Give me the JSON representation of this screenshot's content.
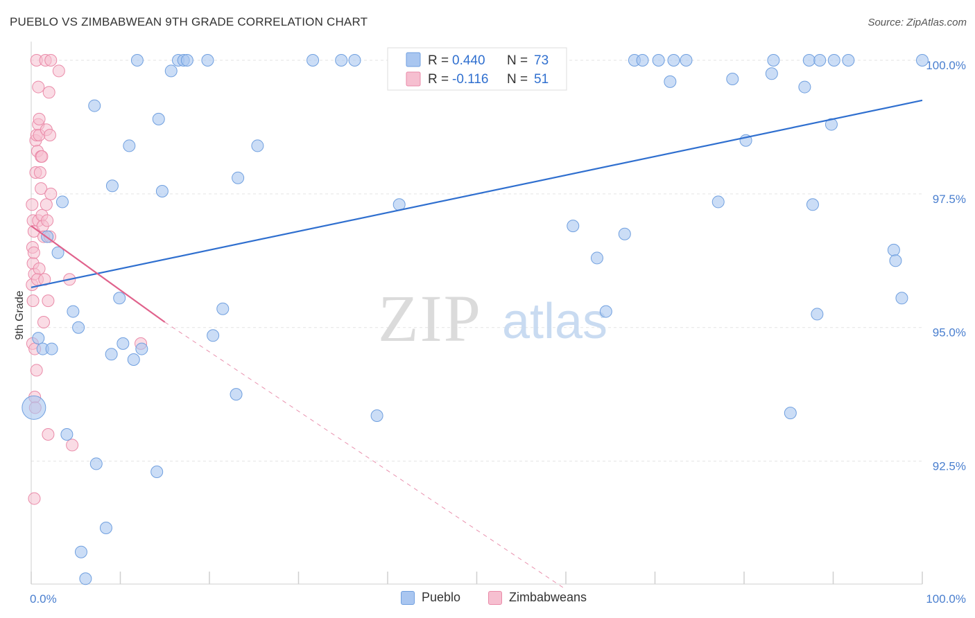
{
  "title": "PUEBLO VS ZIMBABWEAN 9TH GRADE CORRELATION CHART",
  "source": "Source: ZipAtlas.com",
  "watermark": {
    "zip": "ZIP",
    "atlas": "atlas"
  },
  "colors": {
    "blue_fill": "#a9c6f0",
    "blue_stroke": "#6f9fdf",
    "blue_line": "#2f6fcf",
    "pink_fill": "#f6bfd0",
    "pink_stroke": "#ea8aa8",
    "pink_line": "#e0628c",
    "tick_text": "#4a7fcf",
    "grid": "#e3e3e3"
  },
  "legend": {
    "rows": [
      {
        "r_label": "R =",
        "r_value": "0.440",
        "n_label": "N =",
        "n_value": "73"
      },
      {
        "r_label": "R =",
        "r_value": "-0.116",
        "n_label": "N =",
        "n_value": "51"
      }
    ]
  },
  "bottom_legend": [
    "Pueblo",
    "Zimbabweans"
  ],
  "chart_data": {
    "type": "scatter",
    "title": "PUEBLO VS ZIMBABWEAN 9TH GRADE CORRELATION CHART",
    "xlabel": "",
    "ylabel": "9th Grade",
    "xlim": [
      0,
      100
    ],
    "ylim": [
      90.2,
      100.35
    ],
    "x_tick_labels": [
      "0.0%",
      "100.0%"
    ],
    "y_ticks": [
      92.5,
      95.0,
      97.5,
      100.0
    ],
    "y_tick_labels": [
      "92.5%",
      "95.0%",
      "97.5%",
      "100.0%"
    ],
    "grid": true,
    "legend_position": "top-center",
    "series": [
      {
        "name": "Pueblo",
        "trend": {
          "x": [
            0,
            100
          ],
          "y": [
            95.75,
            99.25
          ]
        },
        "points": [
          {
            "x": 0.3,
            "y": 93.5,
            "big": true
          },
          {
            "x": 0.8,
            "y": 94.8
          },
          {
            "x": 1.3,
            "y": 94.6
          },
          {
            "x": 2.3,
            "y": 94.6
          },
          {
            "x": 1.8,
            "y": 96.7
          },
          {
            "x": 3.0,
            "y": 96.4
          },
          {
            "x": 3.5,
            "y": 97.35
          },
          {
            "x": 4.0,
            "y": 93.0
          },
          {
            "x": 4.7,
            "y": 95.3
          },
          {
            "x": 5.3,
            "y": 95.0
          },
          {
            "x": 5.6,
            "y": 90.8
          },
          {
            "x": 6.1,
            "y": 90.3
          },
          {
            "x": 7.1,
            "y": 99.15
          },
          {
            "x": 7.3,
            "y": 92.45
          },
          {
            "x": 8.4,
            "y": 91.25
          },
          {
            "x": 9.1,
            "y": 97.65
          },
          {
            "x": 9.0,
            "y": 94.5
          },
          {
            "x": 9.9,
            "y": 95.55
          },
          {
            "x": 10.3,
            "y": 94.7
          },
          {
            "x": 11.0,
            "y": 98.4
          },
          {
            "x": 11.5,
            "y": 94.4
          },
          {
            "x": 11.9,
            "y": 100.0
          },
          {
            "x": 12.4,
            "y": 94.6
          },
          {
            "x": 14.3,
            "y": 98.9
          },
          {
            "x": 14.1,
            "y": 92.3
          },
          {
            "x": 14.7,
            "y": 97.55
          },
          {
            "x": 15.7,
            "y": 99.8
          },
          {
            "x": 16.5,
            "y": 100.0
          },
          {
            "x": 17.1,
            "y": 100.0
          },
          {
            "x": 17.5,
            "y": 100.0
          },
          {
            "x": 19.8,
            "y": 100.0
          },
          {
            "x": 20.4,
            "y": 94.85
          },
          {
            "x": 21.5,
            "y": 95.35
          },
          {
            "x": 23.2,
            "y": 97.8
          },
          {
            "x": 23.0,
            "y": 93.75
          },
          {
            "x": 25.4,
            "y": 98.4
          },
          {
            "x": 31.6,
            "y": 100.0
          },
          {
            "x": 34.8,
            "y": 100.0
          },
          {
            "x": 36.3,
            "y": 100.0
          },
          {
            "x": 38.8,
            "y": 93.35
          },
          {
            "x": 41.3,
            "y": 97.3
          },
          {
            "x": 42.5,
            "y": 100.0
          },
          {
            "x": 45.5,
            "y": 100.0
          },
          {
            "x": 46.7,
            "y": 100.0
          },
          {
            "x": 48.0,
            "y": 100.0
          },
          {
            "x": 60.8,
            "y": 96.9
          },
          {
            "x": 63.5,
            "y": 96.3
          },
          {
            "x": 64.5,
            "y": 95.3
          },
          {
            "x": 66.6,
            "y": 96.75
          },
          {
            "x": 67.7,
            "y": 100.0
          },
          {
            "x": 68.6,
            "y": 100.0
          },
          {
            "x": 70.4,
            "y": 100.0
          },
          {
            "x": 72.1,
            "y": 100.0
          },
          {
            "x": 71.7,
            "y": 99.6
          },
          {
            "x": 73.5,
            "y": 100.0
          },
          {
            "x": 77.1,
            "y": 97.35
          },
          {
            "x": 78.7,
            "y": 99.65
          },
          {
            "x": 80.2,
            "y": 98.5
          },
          {
            "x": 83.1,
            "y": 99.75
          },
          {
            "x": 83.3,
            "y": 100.0
          },
          {
            "x": 85.2,
            "y": 93.4
          },
          {
            "x": 86.8,
            "y": 99.5
          },
          {
            "x": 87.3,
            "y": 100.0
          },
          {
            "x": 88.5,
            "y": 100.0
          },
          {
            "x": 89.8,
            "y": 98.8
          },
          {
            "x": 90.1,
            "y": 100.0
          },
          {
            "x": 87.7,
            "y": 97.3
          },
          {
            "x": 88.2,
            "y": 95.25
          },
          {
            "x": 91.7,
            "y": 100.0
          },
          {
            "x": 96.8,
            "y": 96.45
          },
          {
            "x": 97.0,
            "y": 96.25
          },
          {
            "x": 97.7,
            "y": 95.55
          },
          {
            "x": 100.0,
            "y": 100.0
          }
        ]
      },
      {
        "name": "Zimbabweans",
        "trend": {
          "x": [
            0,
            15
          ],
          "y": [
            96.9,
            95.1
          ],
          "dashed_to": {
            "x": 60,
            "y": 90.1
          }
        },
        "points": [
          {
            "x": 0.1,
            "y": 97.3
          },
          {
            "x": 0.15,
            "y": 96.5
          },
          {
            "x": 0.2,
            "y": 96.2
          },
          {
            "x": 0.1,
            "y": 95.8
          },
          {
            "x": 0.2,
            "y": 95.5
          },
          {
            "x": 0.15,
            "y": 94.7
          },
          {
            "x": 0.2,
            "y": 97.0
          },
          {
            "x": 0.3,
            "y": 96.8
          },
          {
            "x": 0.3,
            "y": 96.4
          },
          {
            "x": 0.35,
            "y": 96.0
          },
          {
            "x": 0.4,
            "y": 94.6
          },
          {
            "x": 0.5,
            "y": 98.5
          },
          {
            "x": 0.5,
            "y": 97.9
          },
          {
            "x": 0.4,
            "y": 93.7
          },
          {
            "x": 0.45,
            "y": 93.5
          },
          {
            "x": 0.35,
            "y": 91.8
          },
          {
            "x": 0.6,
            "y": 100.0
          },
          {
            "x": 0.6,
            "y": 98.6
          },
          {
            "x": 0.7,
            "y": 98.3
          },
          {
            "x": 0.8,
            "y": 99.5
          },
          {
            "x": 0.8,
            "y": 98.8
          },
          {
            "x": 0.9,
            "y": 98.9
          },
          {
            "x": 0.9,
            "y": 98.6
          },
          {
            "x": 1.0,
            "y": 97.9
          },
          {
            "x": 0.8,
            "y": 97.0
          },
          {
            "x": 0.9,
            "y": 96.1
          },
          {
            "x": 0.7,
            "y": 95.9
          },
          {
            "x": 0.6,
            "y": 94.2
          },
          {
            "x": 1.1,
            "y": 98.2
          },
          {
            "x": 1.2,
            "y": 98.2
          },
          {
            "x": 1.1,
            "y": 97.6
          },
          {
            "x": 1.2,
            "y": 97.1
          },
          {
            "x": 1.3,
            "y": 96.9
          },
          {
            "x": 1.4,
            "y": 96.7
          },
          {
            "x": 1.4,
            "y": 95.1
          },
          {
            "x": 1.6,
            "y": 100.0
          },
          {
            "x": 1.7,
            "y": 98.7
          },
          {
            "x": 1.7,
            "y": 97.3
          },
          {
            "x": 1.8,
            "y": 97.0
          },
          {
            "x": 1.9,
            "y": 95.5
          },
          {
            "x": 1.9,
            "y": 93.0
          },
          {
            "x": 2.0,
            "y": 99.4
          },
          {
            "x": 2.1,
            "y": 98.6
          },
          {
            "x": 2.2,
            "y": 97.5
          },
          {
            "x": 2.1,
            "y": 96.7
          },
          {
            "x": 2.2,
            "y": 100.0
          },
          {
            "x": 3.1,
            "y": 99.8
          },
          {
            "x": 4.3,
            "y": 95.9
          },
          {
            "x": 4.6,
            "y": 92.8
          },
          {
            "x": 12.3,
            "y": 94.7
          },
          {
            "x": 1.5,
            "y": 95.9
          }
        ]
      }
    ]
  }
}
